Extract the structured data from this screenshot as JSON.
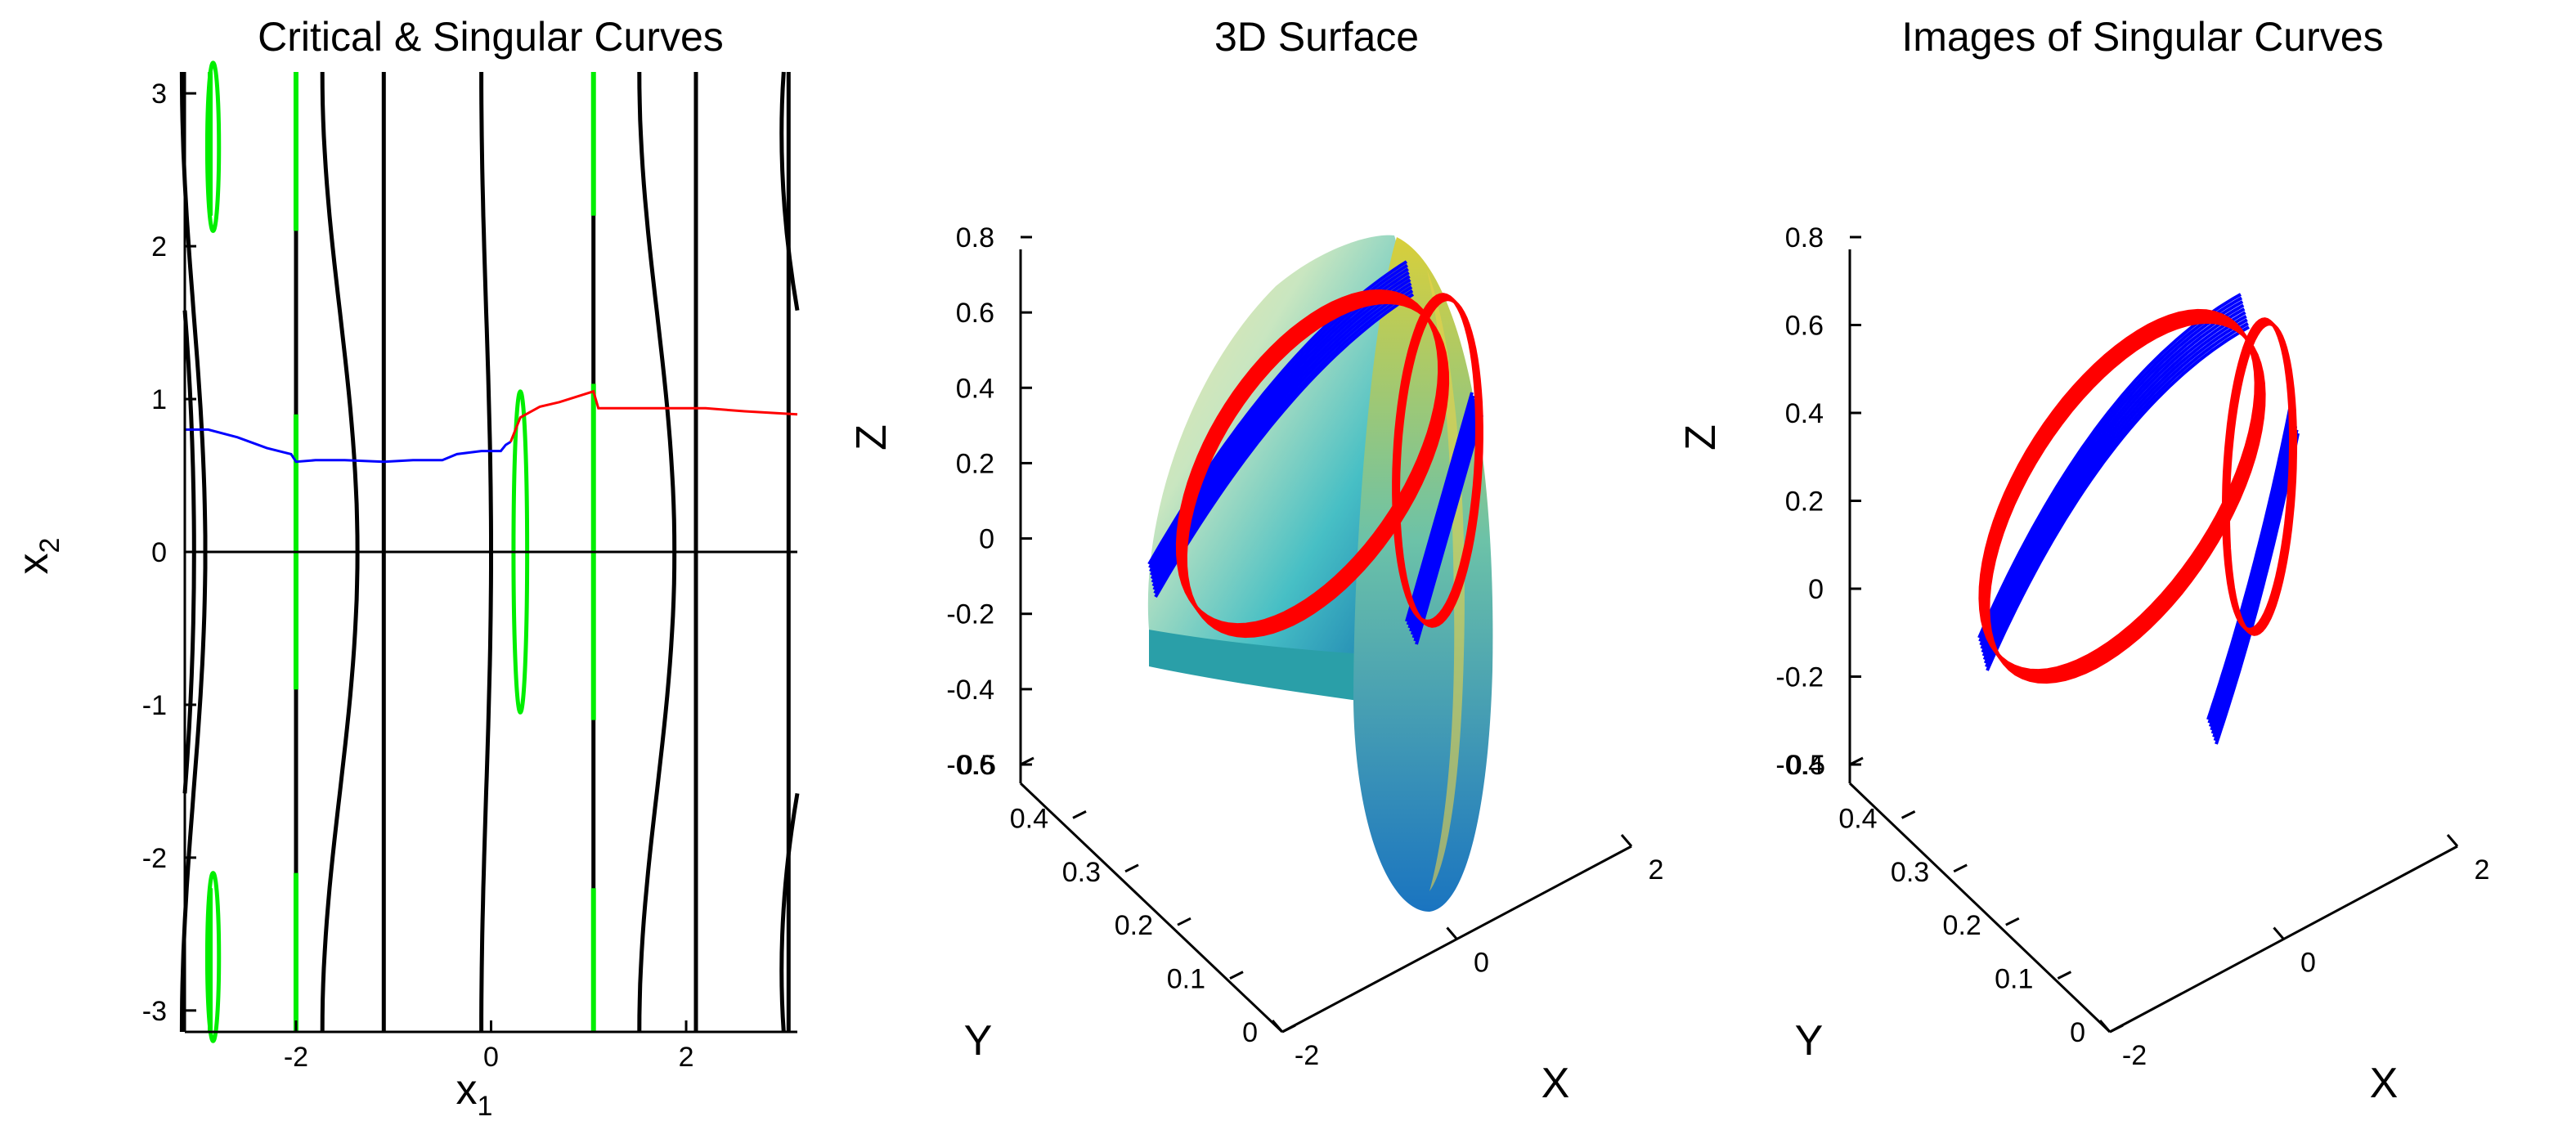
{
  "chart_data": [
    {
      "type": "line",
      "title": "Critical & Singular Curves",
      "xlabel": "x",
      "xlabel_sub": "1",
      "ylabel": "x",
      "ylabel_sub": "2",
      "xlim": [
        -3.14,
        3.14
      ],
      "ylim": [
        -3.14,
        3.14
      ],
      "xticks": [
        -2,
        0,
        2
      ],
      "yticks": [
        -3,
        -2,
        -1,
        0,
        1,
        2,
        3
      ],
      "colors": {
        "critical": "#000000",
        "green": "#00ee00",
        "blue": "#0000ff",
        "red": "#ff0000"
      },
      "series": [
        {
          "color": "blue",
          "x": [
            -3.14,
            -2.9,
            -2.6,
            -2.3,
            -2.05,
            -2.0,
            -1.8,
            -1.5,
            -1.1,
            -0.8,
            -0.5,
            -0.35,
            -0.1,
            0.1,
            0.15,
            0.2
          ],
          "y": [
            0.8,
            0.8,
            0.75,
            0.68,
            0.64,
            0.59,
            0.6,
            0.6,
            0.59,
            0.6,
            0.6,
            0.64,
            0.66,
            0.66,
            0.7,
            0.72
          ]
        },
        {
          "color": "red",
          "x": [
            0.2,
            0.3,
            0.5,
            0.7,
            0.9,
            1.05,
            1.1,
            1.4,
            1.8,
            2.2,
            2.6,
            3.14
          ],
          "y": [
            0.72,
            0.88,
            0.95,
            0.98,
            1.02,
            1.05,
            0.94,
            0.94,
            0.94,
            0.94,
            0.92,
            0.9
          ]
        },
        {
          "color": "critical",
          "x": [
            -3.14,
            3.14
          ],
          "y": [
            0,
            0
          ]
        }
      ]
    },
    {
      "type": "surface",
      "title": "3D Surface",
      "xlabel": "X",
      "ylabel": "Y",
      "zlabel": "Z",
      "xticks": [
        -2,
        0,
        2
      ],
      "yticks": [
        0,
        0.1,
        0.2,
        0.3,
        0.4,
        0.5
      ],
      "zticks": [
        -0.6,
        -0.4,
        -0.2,
        0,
        0.2,
        0.4,
        0.6,
        0.8
      ]
    },
    {
      "type": "line",
      "title": "Images of Singular Curves",
      "xlabel": "X",
      "ylabel": "Y",
      "zlabel": "Z",
      "xticks": [
        -2,
        0,
        2
      ],
      "yticks": [
        0,
        0.1,
        0.2,
        0.3,
        0.4,
        0.5
      ],
      "zticks": [
        -0.4,
        -0.2,
        0,
        0.2,
        0.4,
        0.6,
        0.8
      ]
    }
  ]
}
